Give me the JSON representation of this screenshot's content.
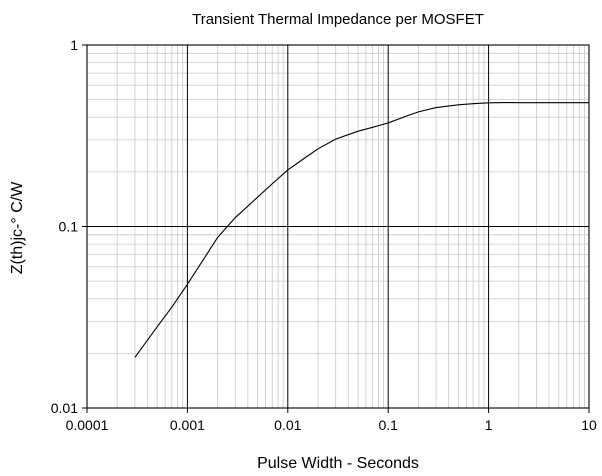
{
  "chart_data": {
    "type": "line",
    "title": "Transient Thermal Impedance per MOSFET",
    "xlabel": "Pulse Width - Seconds",
    "ylabel": "Z(th)jc-° C/W",
    "x_scale": "log",
    "y_scale": "log",
    "xlim": [
      0.0001,
      10
    ],
    "ylim": [
      0.01,
      1
    ],
    "x_ticks": [
      "0.0001",
      "0.001",
      "0.01",
      "0.1",
      "1",
      "10"
    ],
    "y_ticks": [
      "0.01",
      "0.1",
      "1"
    ],
    "grid": true,
    "series": [
      {
        "x": [
          0.0003,
          0.0005,
          0.0007,
          0.001,
          0.0015,
          0.002,
          0.003,
          0.005,
          0.007,
          0.01,
          0.015,
          0.02,
          0.03,
          0.05,
          0.07,
          0.1,
          0.15,
          0.2,
          0.3,
          0.5,
          0.7,
          1,
          1.5,
          2,
          3,
          5,
          10
        ],
        "y": [
          0.019,
          0.028,
          0.036,
          0.048,
          0.068,
          0.087,
          0.112,
          0.145,
          0.172,
          0.205,
          0.24,
          0.268,
          0.303,
          0.335,
          0.352,
          0.372,
          0.405,
          0.428,
          0.452,
          0.468,
          0.475,
          0.48,
          0.482,
          0.481,
          0.481,
          0.481,
          0.481
        ]
      }
    ]
  }
}
